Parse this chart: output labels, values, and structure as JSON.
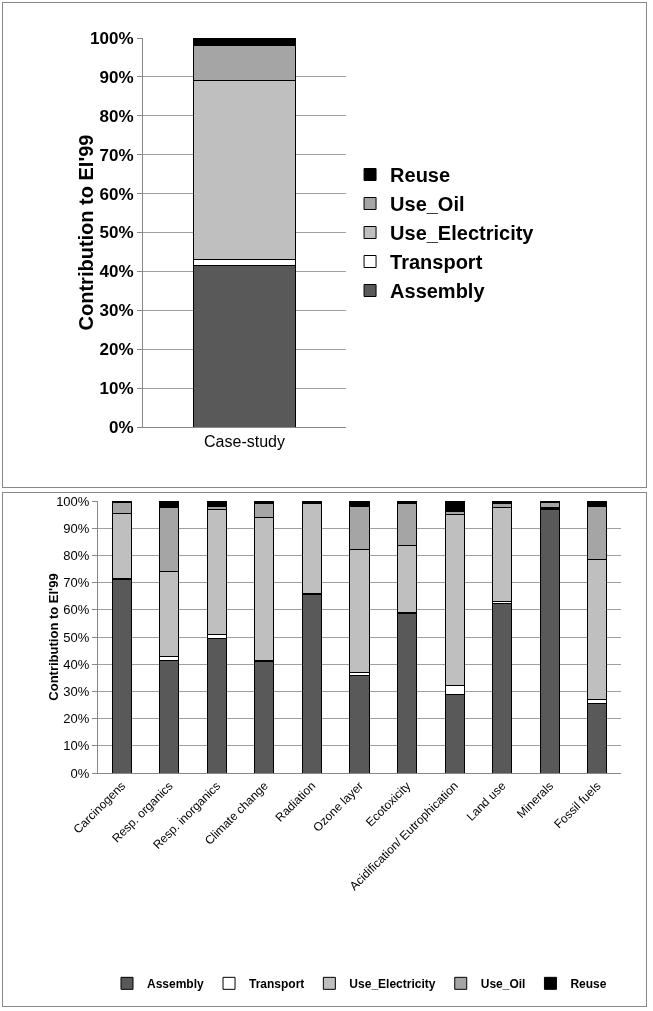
{
  "chart_data": [
    {
      "type": "bar",
      "stacked": true,
      "ylabel": "Contribution to EI'99",
      "categories": [
        "Case-study"
      ],
      "ylim": [
        0,
        100
      ],
      "yticks": [
        {
          "value": 0,
          "label": "0%"
        },
        {
          "value": 10,
          "label": "10%"
        },
        {
          "value": 20,
          "label": "20%"
        },
        {
          "value": 30,
          "label": "30%"
        },
        {
          "value": 40,
          "label": "40%"
        },
        {
          "value": 50,
          "label": "50%"
        },
        {
          "value": 60,
          "label": "60%"
        },
        {
          "value": 70,
          "label": "70%"
        },
        {
          "value": 80,
          "label": "80%"
        },
        {
          "value": 90,
          "label": "90%"
        },
        {
          "value": 100,
          "label": "100%"
        }
      ],
      "grid": "y",
      "legend": "right",
      "series": [
        {
          "name": "Assembly",
          "color": "#595959",
          "values": [
            41.5
          ]
        },
        {
          "name": "Transport",
          "color": "#ffffff",
          "values": [
            1.5
          ]
        },
        {
          "name": "Use_Electricity",
          "color": "#bfbfbf",
          "values": [
            46
          ]
        },
        {
          "name": "Use_Oil",
          "color": "#a5a5a5",
          "values": [
            9
          ]
        },
        {
          "name": "Reuse",
          "color": "#000000",
          "values": [
            2
          ]
        }
      ]
    },
    {
      "type": "bar",
      "stacked": true,
      "ylabel": "Contribution to EI'99",
      "categories": [
        "Carcinogens",
        "Resp. organics",
        "Resp. inorganics",
        "Climate change",
        "Radiation",
        "Ozone layer",
        "Ecotoxicity",
        "Acidification/ Eutrophication",
        "Land use",
        "Minerals",
        "Fossil fuels"
      ],
      "ylim": [
        0,
        100
      ],
      "yticks": [
        {
          "value": 0,
          "label": "0%"
        },
        {
          "value": 10,
          "label": "10%"
        },
        {
          "value": 20,
          "label": "20%"
        },
        {
          "value": 30,
          "label": "30%"
        },
        {
          "value": 40,
          "label": "40%"
        },
        {
          "value": 50,
          "label": "50%"
        },
        {
          "value": 60,
          "label": "60%"
        },
        {
          "value": 70,
          "label": "70%"
        },
        {
          "value": 80,
          "label": "80%"
        },
        {
          "value": 90,
          "label": "90%"
        },
        {
          "value": 100,
          "label": "100%"
        }
      ],
      "grid": "y",
      "legend": "bottom",
      "series": [
        {
          "name": "Assembly",
          "color": "#595959",
          "values": [
            71,
            41.5,
            49.5,
            41,
            65.5,
            36,
            58.5,
            29,
            62.5,
            97,
            25.5
          ]
        },
        {
          "name": "Transport",
          "color": "#ffffff",
          "values": [
            0.5,
            1.5,
            1.5,
            0.5,
            0.5,
            1,
            0.5,
            3,
            0.5,
            0.2,
            1.5
          ]
        },
        {
          "name": "Use_Electricity",
          "color": "#bfbfbf",
          "values": [
            24,
            31,
            46,
            52.5,
            33,
            45,
            24.5,
            63,
            34.5,
            0.3,
            51.5
          ]
        },
        {
          "name": "Use_Oil",
          "color": "#a5a5a5",
          "values": [
            4,
            23.5,
            1,
            5,
            0.5,
            16,
            15.5,
            1,
            1.5,
            2,
            19.5
          ]
        },
        {
          "name": "Reuse",
          "color": "#000000",
          "values": [
            0.5,
            2.5,
            2,
            1,
            0.5,
            2,
            1,
            4,
            1,
            0.5,
            2
          ]
        }
      ]
    }
  ]
}
